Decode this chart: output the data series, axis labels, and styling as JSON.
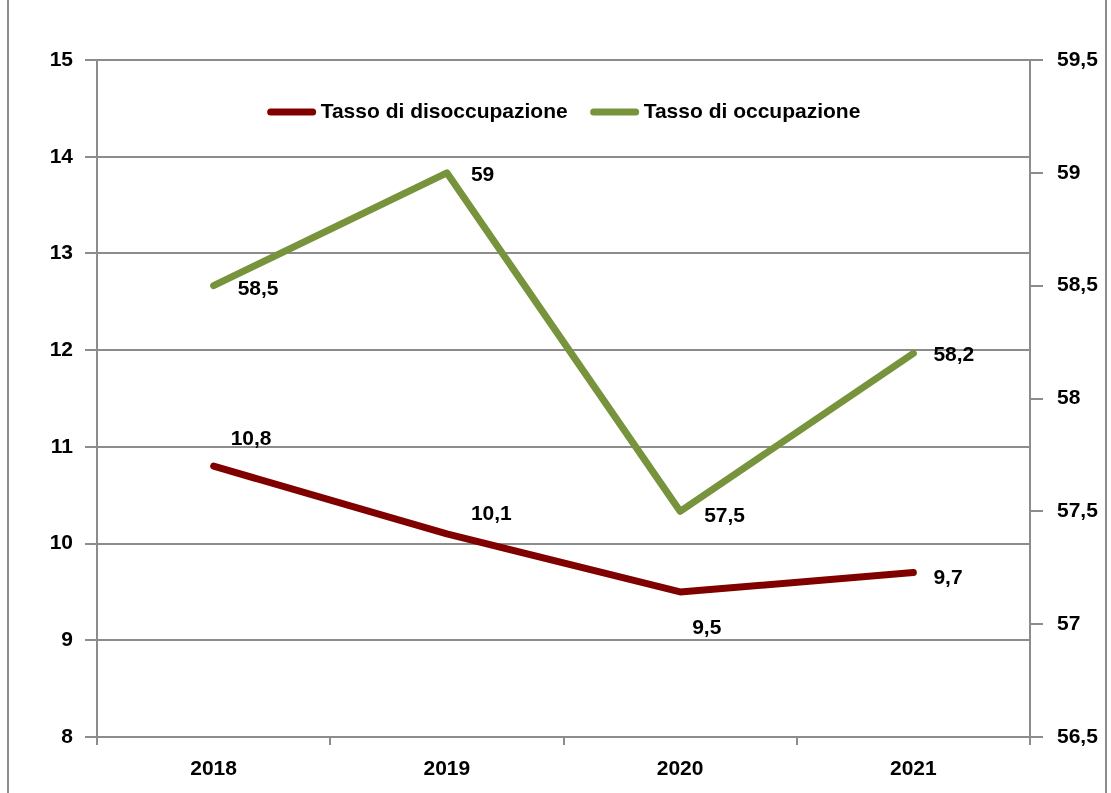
{
  "chart_data": {
    "type": "line",
    "categories": [
      "2018",
      "2019",
      "2020",
      "2021"
    ],
    "series": [
      {
        "name": "Tasso di disoccupazione",
        "color": "#800000",
        "values": [
          10.8,
          10.1,
          9.5,
          9.7
        ],
        "value_labels": [
          "10,8",
          "10,1",
          "9,5",
          "9,7"
        ]
      },
      {
        "name": "Tasso di occupazione",
        "color": "#77933c",
        "axis": "y2",
        "values": [
          58.5,
          59,
          57.5,
          58.2
        ],
        "value_labels": [
          "58,5",
          "59",
          "57,5",
          "58,2"
        ]
      }
    ],
    "ylim": [
      8,
      15
    ],
    "yticks": [
      8,
      9,
      10,
      11,
      12,
      13,
      14,
      15
    ],
    "y2lim": [
      56.5,
      59.5
    ],
    "y2ticks": [
      {
        "value": 56.5,
        "label": "56,5"
      },
      57,
      {
        "value": 57.5,
        "label": "57,5"
      },
      58,
      {
        "value": 58.5,
        "label": "58,5"
      },
      59,
      {
        "value": 59.5,
        "label": "59,5"
      }
    ],
    "grid": "y",
    "legend": "top",
    "marker": "none",
    "line_style": "solid"
  }
}
